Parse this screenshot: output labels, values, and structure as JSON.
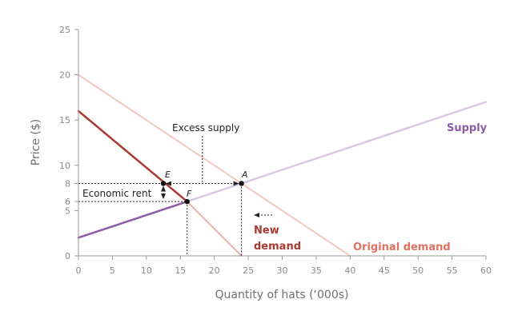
{
  "chart_data": {
    "type": "line",
    "xlabel": "Quantity of hats (‘000s)",
    "ylabel": "Price ($)",
    "xlim": [
      0,
      60
    ],
    "ylim": [
      0,
      25
    ],
    "x_ticks": [
      0,
      5,
      10,
      15,
      20,
      25,
      30,
      35,
      40,
      45,
      50,
      55,
      60
    ],
    "y_ticks": [
      0,
      5,
      6,
      8,
      10,
      15,
      20,
      25
    ],
    "series": [
      {
        "name": "Supply",
        "color": "#8e5aa8",
        "light_color": "#d9c8e3",
        "points": [
          [
            0,
            2
          ],
          [
            60,
            17
          ]
        ]
      },
      {
        "name": "Original demand",
        "color": "#e07060",
        "light_color": "#f3c7c0",
        "points": [
          [
            0,
            20
          ],
          [
            40,
            0
          ]
        ]
      },
      {
        "name": "New demand",
        "color": "#a83a2f",
        "light_color": "#e3b3ab",
        "points": [
          [
            0,
            16
          ],
          [
            24,
            0
          ]
        ]
      }
    ],
    "points": [
      {
        "label": "E",
        "x": 12.5,
        "y": 8
      },
      {
        "label": "A",
        "x": 24,
        "y": 8
      },
      {
        "label": "F",
        "x": 16,
        "y": 6
      }
    ],
    "labels": {
      "supply": "Supply",
      "original_demand": "Original demand",
      "new_demand_line1": "New",
      "new_demand_line2": "demand",
      "excess_supply": "Excess supply",
      "economic_rent": "Economic rent"
    }
  }
}
